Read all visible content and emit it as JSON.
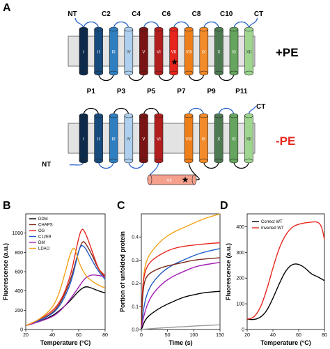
{
  "panel_a": {
    "letter": "A",
    "top": {
      "label": "+PE",
      "helix_labels": [
        "I",
        "II",
        "III",
        "IV",
        "V",
        "VI",
        "VII",
        "VIII",
        "IX",
        "X",
        "XI",
        "XII"
      ],
      "helix_colors": [
        "#0d2a4a",
        "#174b7e",
        "#2f7fc0",
        "#aecfee",
        "#7a1414",
        "#b21d1d",
        "#e6261d",
        "#ef7f1a",
        "#f28b2a",
        "#4e7a52",
        "#66a55f",
        "#9ed58f"
      ],
      "cyto_labels": [
        "NT",
        "C2",
        "C4",
        "C6",
        "C8",
        "C10",
        "CT"
      ],
      "peri_labels": [
        "P1",
        "P3",
        "P5",
        "P7",
        "P9",
        "P11"
      ]
    },
    "bottom": {
      "label": "-PE",
      "helix_labels": [
        "I",
        "II",
        "III",
        "IV",
        "V",
        "VI",
        "VIII",
        "IX",
        "X",
        "XI",
        "XII"
      ],
      "helix_colors": [
        "#0d2a4a",
        "#174b7e",
        "#2f7fc0",
        "#aecfee",
        "#7a1414",
        "#b21d1d",
        "#ef7f1a",
        "#f28b2a",
        "#4e7a52",
        "#66a55f",
        "#9ed58f"
      ],
      "flipped_label": "VII",
      "flipped_color": "#f4a08c",
      "nt_label": "NT",
      "ct_label": "CT"
    }
  },
  "chart_data": [
    {
      "panel": "B",
      "type": "line",
      "xlabel": "Temperature (°C)",
      "ylabel": "Fluorescence (a.u.)",
      "xlim": [
        20,
        80
      ],
      "ylim": [
        0,
        1200
      ],
      "xticks": [
        20,
        40,
        60,
        80
      ],
      "yticks": [
        0,
        200,
        400,
        600,
        800,
        1000
      ],
      "legend_position": "top-left",
      "series": [
        {
          "name": "DDM",
          "color": "#000000",
          "x": [
            20,
            30,
            40,
            45,
            50,
            55,
            60,
            65,
            70,
            75,
            80
          ],
          "y": [
            40,
            80,
            140,
            190,
            250,
            320,
            400,
            450,
            430,
            400,
            380
          ]
        },
        {
          "name": "CHAPS",
          "color": "#7a2a1a",
          "x": [
            20,
            30,
            40,
            45,
            50,
            55,
            60,
            63,
            65,
            70,
            75,
            80
          ],
          "y": [
            40,
            90,
            170,
            250,
            380,
            560,
            820,
            920,
            900,
            780,
            620,
            540
          ]
        },
        {
          "name": "OG",
          "color": "#e8261d",
          "x": [
            20,
            30,
            40,
            45,
            50,
            55,
            58,
            62,
            65,
            70,
            75,
            80
          ],
          "y": [
            40,
            100,
            190,
            270,
            400,
            620,
            830,
            1060,
            1010,
            820,
            620,
            560
          ]
        },
        {
          "name": "C12E9",
          "color": "#1f5cc8",
          "x": [
            20,
            30,
            40,
            45,
            50,
            55,
            60,
            62,
            65,
            70,
            75,
            80
          ],
          "y": [
            40,
            90,
            160,
            230,
            350,
            520,
            820,
            880,
            850,
            720,
            600,
            520
          ]
        },
        {
          "name": "DM",
          "color": "#a21fb5",
          "x": [
            20,
            30,
            40,
            45,
            50,
            55,
            60,
            65,
            70,
            75,
            80
          ],
          "y": [
            40,
            80,
            130,
            180,
            250,
            340,
            440,
            540,
            570,
            560,
            550
          ]
        },
        {
          "name": "LDAO",
          "color": "#f2a31a",
          "x": [
            20,
            30,
            40,
            45,
            50,
            53,
            56,
            58,
            60,
            65,
            70,
            75,
            80
          ],
          "y": [
            40,
            100,
            220,
            360,
            600,
            760,
            860,
            810,
            700,
            560,
            500,
            460,
            430
          ]
        }
      ]
    },
    {
      "panel": "C",
      "type": "line",
      "xlabel": "Time (s)",
      "ylabel": "Portion of unfolded protein",
      "xlim": [
        0,
        150
      ],
      "ylim": [
        0,
        0.5
      ],
      "xticks": [
        0,
        50,
        100,
        150
      ],
      "yticks": [
        0.0,
        0.1,
        0.2,
        0.3,
        0.4
      ],
      "series": [
        {
          "color": "#f2a31a",
          "x": [
            0,
            2,
            5,
            10,
            20,
            40,
            60,
            80,
            100,
            120,
            150
          ],
          "y": [
            0,
            0.16,
            0.25,
            0.3,
            0.34,
            0.39,
            0.42,
            0.44,
            0.46,
            0.48,
            0.5
          ]
        },
        {
          "color": "#e8261d",
          "x": [
            0,
            2,
            5,
            10,
            20,
            40,
            60,
            80,
            100,
            120,
            150
          ],
          "y": [
            0,
            0.17,
            0.23,
            0.27,
            0.3,
            0.33,
            0.35,
            0.36,
            0.365,
            0.37,
            0.375
          ]
        },
        {
          "color": "#1f5cc8",
          "x": [
            0,
            2,
            5,
            10,
            20,
            40,
            60,
            80,
            100,
            120,
            150
          ],
          "y": [
            0,
            0.05,
            0.1,
            0.15,
            0.2,
            0.25,
            0.28,
            0.3,
            0.32,
            0.335,
            0.35
          ]
        },
        {
          "color": "#7a2a1a",
          "x": [
            0,
            2,
            5,
            10,
            20,
            40,
            60,
            80,
            100,
            120,
            150
          ],
          "y": [
            0,
            0.13,
            0.2,
            0.23,
            0.25,
            0.27,
            0.28,
            0.29,
            0.3,
            0.305,
            0.31
          ]
        },
        {
          "color": "#a21fb5",
          "x": [
            0,
            2,
            5,
            10,
            20,
            40,
            60,
            80,
            100,
            120,
            150
          ],
          "y": [
            0,
            0.03,
            0.06,
            0.1,
            0.15,
            0.2,
            0.23,
            0.25,
            0.27,
            0.28,
            0.29
          ]
        },
        {
          "color": "#000000",
          "x": [
            0,
            2,
            5,
            10,
            20,
            40,
            60,
            80,
            100,
            120,
            150
          ],
          "y": [
            0,
            0.01,
            0.03,
            0.05,
            0.07,
            0.1,
            0.12,
            0.14,
            0.15,
            0.16,
            0.165
          ]
        },
        {
          "color": "#999999",
          "x": [
            0,
            20,
            40,
            60,
            80,
            100,
            120,
            150
          ],
          "y": [
            0,
            0.004,
            0.007,
            0.01,
            0.012,
            0.015,
            0.017,
            0.02
          ]
        }
      ]
    },
    {
      "panel": "D",
      "type": "line",
      "xlabel": "Temperature (°C)",
      "ylabel": "Fluorescence (a.u.)",
      "xlim": [
        20,
        80
      ],
      "ylim": [
        0,
        450
      ],
      "xticks": [
        20,
        40,
        60,
        80
      ],
      "yticks": [
        0,
        100,
        200,
        300,
        400
      ],
      "legend_position": "top-left",
      "series": [
        {
          "name": "Correct WT",
          "color": "#000000",
          "x": [
            20,
            25,
            30,
            35,
            40,
            45,
            50,
            55,
            60,
            65,
            70,
            75,
            80
          ],
          "y": [
            40,
            38,
            45,
            70,
            120,
            180,
            230,
            255,
            255,
            240,
            215,
            205,
            190
          ]
        },
        {
          "name": "Inverted WT",
          "color": "#e8261d",
          "x": [
            20,
            25,
            30,
            35,
            40,
            45,
            50,
            55,
            60,
            65,
            70,
            75,
            78,
            80
          ],
          "y": [
            40,
            45,
            80,
            150,
            240,
            320,
            370,
            400,
            410,
            415,
            418,
            420,
            400,
            350
          ]
        }
      ]
    }
  ]
}
